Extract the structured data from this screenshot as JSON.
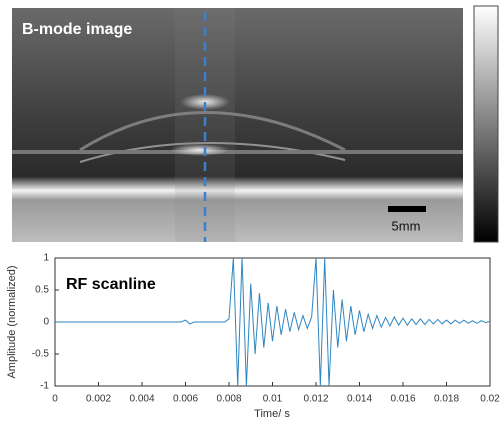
{
  "bmode": {
    "label": "B-mode image",
    "scale_bar": "5mm"
  },
  "chart_data": {
    "type": "line",
    "annotation": "RF scanline",
    "x_label": "Time/ s",
    "y_label": "Amplitude (normalized)",
    "x": [
      0,
      0.0058,
      0.006,
      0.0062,
      0.0064,
      0.0078,
      0.008,
      0.0082,
      0.0084,
      0.0086,
      0.0088,
      0.009,
      0.0092,
      0.0094,
      0.0096,
      0.0098,
      0.01,
      0.0102,
      0.0104,
      0.0106,
      0.0108,
      0.011,
      0.0112,
      0.0114,
      0.0116,
      0.0118,
      0.012,
      0.0122,
      0.0124,
      0.0126,
      0.0128,
      0.013,
      0.0132,
      0.0134,
      0.0136,
      0.0138,
      0.014,
      0.0142,
      0.0144,
      0.0146,
      0.0148,
      0.015,
      0.0152,
      0.0154,
      0.0156,
      0.0158,
      0.016,
      0.0162,
      0.0164,
      0.0166,
      0.0168,
      0.017,
      0.0172,
      0.0174,
      0.0176,
      0.0178,
      0.018,
      0.0182,
      0.0184,
      0.0186,
      0.0188,
      0.019,
      0.0192,
      0.0194,
      0.0196,
      0.0198,
      0.02
    ],
    "series": [
      {
        "color": "#2e86c1",
        "values": [
          0,
          0,
          0.03,
          -0.03,
          0,
          0,
          0.05,
          1,
          -1,
          1,
          -1,
          0.6,
          -0.5,
          0.45,
          -0.4,
          0.3,
          -0.3,
          0.25,
          -0.2,
          0.2,
          -0.15,
          0.15,
          -0.12,
          0.1,
          -0.1,
          0.08,
          1,
          -1,
          1,
          -1,
          0.5,
          -0.4,
          0.35,
          -0.3,
          0.25,
          -0.2,
          0.18,
          -0.15,
          0.12,
          -0.1,
          0.1,
          -0.08,
          0.07,
          -0.06,
          0.08,
          -0.05,
          0.06,
          -0.05,
          0.05,
          -0.04,
          0.05,
          -0.04,
          0.04,
          -0.03,
          0.04,
          -0.03,
          0.03,
          -0.03,
          0.03,
          -0.02,
          0.03,
          -0.02,
          0.02,
          -0.02,
          0.02,
          -0.01,
          0.01
        ]
      }
    ],
    "xlim": [
      0,
      0.02
    ],
    "xticks": [
      0,
      0.002,
      0.004,
      0.006,
      0.008,
      0.01,
      0.012,
      0.014,
      0.016,
      0.018,
      0.02
    ],
    "ylim": [
      -1,
      1
    ],
    "yticks": [
      -1,
      -0.5,
      0,
      0.5,
      1
    ]
  }
}
